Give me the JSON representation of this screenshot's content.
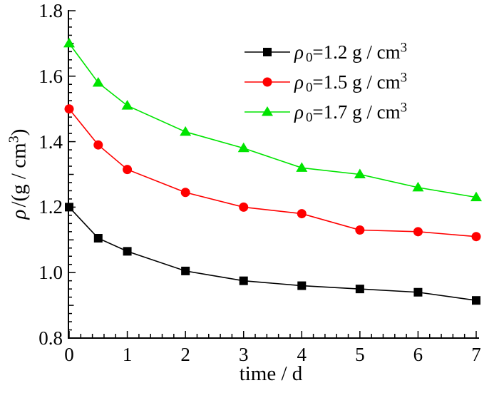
{
  "figure": {
    "x_axis": {
      "ticks": [
        "0",
        "1",
        "2",
        "3",
        "4",
        "5",
        "6",
        "7"
      ],
      "title": "time / d"
    },
    "y_axis": {
      "ticks": [
        "0.8",
        "1.0",
        "1.2",
        "1.4",
        "1.6",
        "1.8"
      ],
      "label_parts": {
        "rho": "ρ",
        "mid": "/(g / cm",
        "sup": "3",
        "close": ")"
      }
    },
    "legend": {
      "items": [
        {
          "rho": "ρ",
          "sub": "0",
          "mid": "=1.2 g / cm",
          "sup": "3",
          "color": "#000000",
          "marker": "square"
        },
        {
          "rho": "ρ",
          "sub": "0",
          "mid": "=1.5 g / cm",
          "sup": "3",
          "color": "#ff0000",
          "marker": "circle"
        },
        {
          "rho": "ρ",
          "sub": "0",
          "mid": "=1.7 g / cm",
          "sup": "3",
          "color": "#00e400",
          "marker": "triangle"
        }
      ]
    }
  },
  "chart_data": {
    "type": "line",
    "x": [
      0,
      0.5,
      1,
      2,
      3,
      4,
      5,
      6,
      7
    ],
    "series": [
      {
        "name": "ρ0=1.2 g / cm3",
        "color": "#000000",
        "marker": "square",
        "values": [
          1.2,
          1.105,
          1.065,
          1.005,
          0.975,
          0.96,
          0.95,
          0.94,
          0.915
        ]
      },
      {
        "name": "ρ0=1.5 g / cm3",
        "color": "#ff0000",
        "marker": "circle",
        "values": [
          1.5,
          1.39,
          1.315,
          1.245,
          1.2,
          1.18,
          1.13,
          1.125,
          1.11
        ]
      },
      {
        "name": "ρ0=1.7 g / cm3",
        "color": "#00e400",
        "marker": "triangle",
        "values": [
          1.7,
          1.58,
          1.51,
          1.43,
          1.38,
          1.32,
          1.3,
          1.26,
          1.23
        ]
      }
    ],
    "xlabel": "time / d",
    "ylabel": "ρ/(g / cm3)",
    "xlim": [
      0,
      7
    ],
    "ylim": [
      0.8,
      1.8
    ],
    "x_major": 1,
    "x_minor": 0.2,
    "y_major": 0.2,
    "y_minor": 0.025,
    "grid": false,
    "legend_position": "upper-right-inside"
  }
}
